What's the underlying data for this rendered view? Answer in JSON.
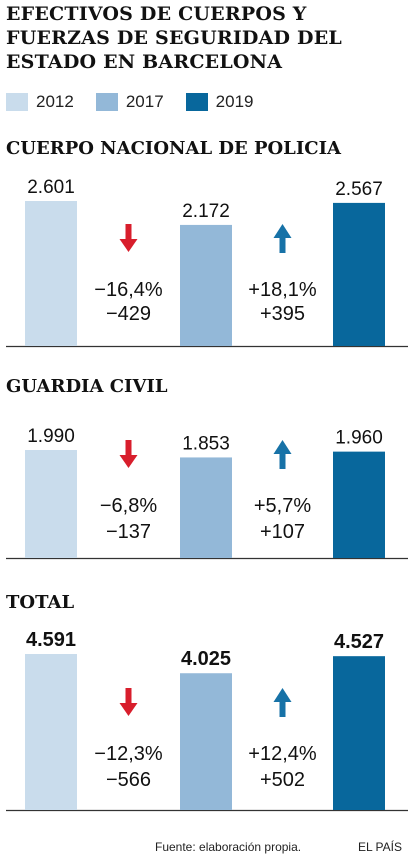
{
  "title": "EFECTIVOS DE CUERPOS Y FUERZAS DE SEGURIDAD DEL ESTADO EN BARCELONA",
  "colors": {
    "y2012": "#c9dcec",
    "y2017": "#93b8d8",
    "y2019": "#08679c",
    "down": "#d81e2c",
    "up": "#1772a7"
  },
  "legend": [
    {
      "label": "2012",
      "color": "#c9dcec"
    },
    {
      "label": "2017",
      "color": "#93b8d8"
    },
    {
      "label": "2019",
      "color": "#08679c"
    }
  ],
  "chart_data": [
    {
      "type": "bar",
      "title": "CUERPO NACIONAL DE POLICIA",
      "categories": [
        "2012",
        "2017",
        "2019"
      ],
      "values": [
        2601,
        2172,
        2567
      ],
      "value_labels": [
        "2.601",
        "2.172",
        "2.567"
      ],
      "changes": [
        {
          "direction": "down",
          "pct": "−16,4%",
          "abs": "−429"
        },
        {
          "direction": "up",
          "pct": "+18,1%",
          "abs": "+395"
        }
      ]
    },
    {
      "type": "bar",
      "title": "GUARDIA CIVIL",
      "categories": [
        "2012",
        "2017",
        "2019"
      ],
      "values": [
        1990,
        1853,
        1960
      ],
      "value_labels": [
        "1.990",
        "1.853",
        "1.960"
      ],
      "changes": [
        {
          "direction": "down",
          "pct": "−6,8%",
          "abs": "−137"
        },
        {
          "direction": "up",
          "pct": "+5,7%",
          "abs": "+107"
        }
      ]
    },
    {
      "type": "bar",
      "title": "TOTAL",
      "categories": [
        "2012",
        "2017",
        "2019"
      ],
      "values": [
        4591,
        4025,
        4527
      ],
      "value_labels": [
        "4.591",
        "4.025",
        "4.527"
      ],
      "changes": [
        {
          "direction": "down",
          "pct": "−12,3%",
          "abs": "−566"
        },
        {
          "direction": "up",
          "pct": "+12,4%",
          "abs": "+502"
        }
      ]
    }
  ],
  "source": "Fuente: elaboración propia.",
  "credit": "EL PAÍS"
}
